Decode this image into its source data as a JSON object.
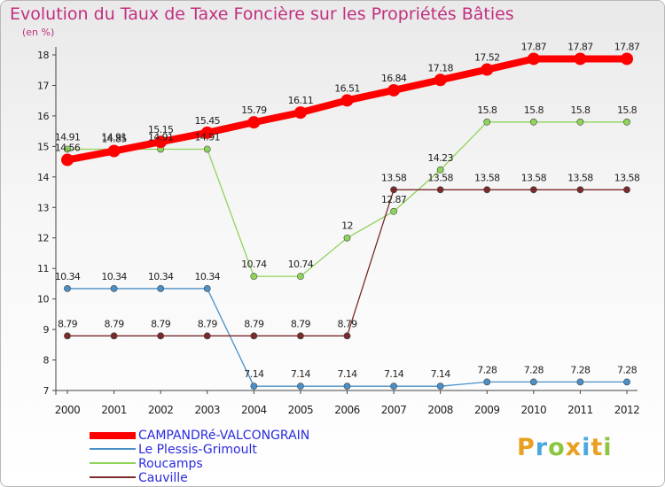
{
  "chart_data": {
    "type": "line",
    "title": "Evolution du Taux de Taxe Foncière sur les Propriétés Bâties",
    "ylabel": "(en %)",
    "xlabel": "",
    "ylim": [
      7,
      18
    ],
    "yticks": [
      "7",
      "8",
      "9",
      "10",
      "11",
      "12",
      "13",
      "14",
      "15",
      "16",
      "17",
      "18"
    ],
    "categories": [
      "2000",
      "2001",
      "2002",
      "2003",
      "2004",
      "2005",
      "2006",
      "2007",
      "2008",
      "2009",
      "2010",
      "2011",
      "2012"
    ],
    "series": [
      {
        "name": "CAMPANDRé-VALCONGRAIN",
        "color": "#ff0000",
        "values": [
          14.56,
          14.85,
          15.15,
          15.45,
          15.79,
          16.11,
          16.51,
          16.84,
          17.18,
          17.52,
          17.87,
          17.87,
          17.87
        ],
        "labels": [
          "14.56",
          "14.85",
          "15.15",
          "15.45",
          "15.79",
          "16.11",
          "16.51",
          "16.84",
          "17.18",
          "17.52",
          "17.87",
          "17.87",
          "17.87"
        ]
      },
      {
        "name": "Le Plessis-Grimoult",
        "color": "#4a90c8",
        "values": [
          10.34,
          10.34,
          10.34,
          10.34,
          7.14,
          7.14,
          7.14,
          7.14,
          7.14,
          7.28,
          7.28,
          7.28,
          7.28
        ],
        "labels": [
          "10.34",
          "10.34",
          "10.34",
          "10.34",
          "7.14",
          "7.14",
          "7.14",
          "7.14",
          "7.14",
          "7.28",
          "7.28",
          "7.28",
          "7.28"
        ]
      },
      {
        "name": "Roucamps",
        "color": "#8fd45a",
        "values": [
          14.91,
          14.91,
          14.91,
          14.91,
          10.74,
          10.74,
          12,
          12.87,
          14.23,
          15.8,
          15.8,
          15.8,
          15.8
        ],
        "labels": [
          "14.91",
          "14.91",
          "14.91",
          "14.91",
          "10.74",
          "10.74",
          "12",
          "12.87",
          "14.23",
          "15.8",
          "15.8",
          "15.8",
          "15.8"
        ]
      },
      {
        "name": "Cauville",
        "color": "#7a2a2a",
        "values": [
          8.79,
          8.79,
          8.79,
          8.79,
          8.79,
          8.79,
          8.79,
          13.58,
          13.58,
          13.58,
          13.58,
          13.58,
          13.58
        ],
        "labels": [
          "8.79",
          "8.79",
          "8.79",
          "8.79",
          "8.79",
          "8.79",
          "8.79",
          "13.58",
          "13.58",
          "13.58",
          "13.58",
          "13.58",
          "13.58"
        ]
      }
    ],
    "grid": false,
    "legend": "bottom-left"
  },
  "logo": {
    "letters": [
      "P",
      "r",
      "o",
      "x",
      "i",
      "t",
      "i"
    ],
    "colors": [
      "#e8a020",
      "#4aa8e0",
      "#8cc63f",
      "#e8a020",
      "#4aa8e0",
      "#e8a020",
      "#8cc63f"
    ]
  }
}
